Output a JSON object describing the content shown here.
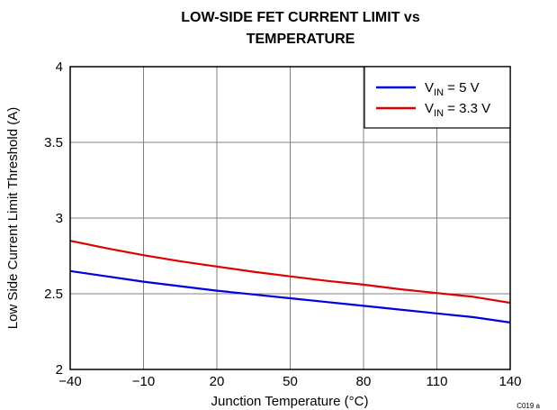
{
  "chart_data": {
    "type": "line",
    "title_lines": [
      "LOW-SIDE FET CURRENT LIMIT vs",
      "TEMPERATURE"
    ],
    "xlabel": "Junction Temperature (°C)",
    "ylabel": "Low Side Current Limit Threshold (A)",
    "xlim": [
      -40,
      140
    ],
    "ylim": [
      2,
      4
    ],
    "x_ticks": [
      -40,
      -10,
      20,
      50,
      80,
      110,
      140
    ],
    "x_tick_labels": [
      "−40",
      "−10",
      "20",
      "50",
      "80",
      "110",
      "140"
    ],
    "y_ticks": [
      2,
      2.5,
      3,
      3.5,
      4
    ],
    "y_tick_labels": [
      "2",
      "2.5",
      "3",
      "3.5",
      "4"
    ],
    "grid": true,
    "legend_position": "top-right",
    "series": [
      {
        "name_main": "V",
        "name_sub": "IN",
        "name_rest": " = 5 V",
        "color": "#0000e0",
        "x": [
          -40,
          -25,
          -10,
          5,
          20,
          35,
          50,
          65,
          80,
          95,
          110,
          125,
          140
        ],
        "y": [
          2.65,
          2.615,
          2.58,
          2.55,
          2.52,
          2.495,
          2.47,
          2.445,
          2.42,
          2.395,
          2.37,
          2.345,
          2.31
        ]
      },
      {
        "name_main": "V",
        "name_sub": "IN",
        "name_rest": " = 3.3 V",
        "color": "#e00000",
        "x": [
          -40,
          -25,
          -10,
          5,
          20,
          35,
          50,
          65,
          80,
          95,
          110,
          125,
          140
        ],
        "y": [
          2.85,
          2.8,
          2.755,
          2.715,
          2.68,
          2.645,
          2.615,
          2.585,
          2.56,
          2.53,
          2.505,
          2.48,
          2.44
        ]
      }
    ],
    "code_label": "C019 a"
  }
}
